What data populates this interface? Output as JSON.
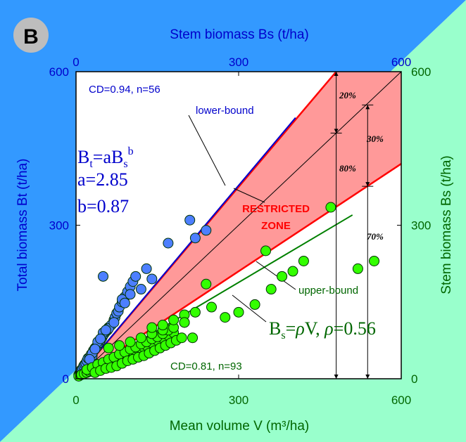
{
  "chart_data": {
    "type": "scatter",
    "panel_label": "B",
    "x_bottom": {
      "label": "Mean volume V (m³/ha)",
      "ticks": [
        0,
        300,
        600
      ],
      "range": [
        0,
        600
      ]
    },
    "x_top": {
      "label": "Stem biomass Bs (t/ha)",
      "ticks": [
        0,
        300,
        600
      ],
      "range": [
        0,
        600
      ]
    },
    "y_left": {
      "label": "Total biomass Bt (t/ha)",
      "ticks": [
        0,
        300,
        600
      ],
      "range": [
        0,
        600
      ]
    },
    "y_right": {
      "label": "Stem biomass Bs (t/ha)",
      "ticks": [
        0,
        300,
        600
      ],
      "range": [
        0,
        600
      ]
    },
    "annotations": {
      "cd_top": "CD=0.94, n=56",
      "cd_bottom": "CD=0.81, n=93",
      "lower_bound": "lower-bound",
      "upper_bound": "upper-bound",
      "restricted_1": "RESTRICTED",
      "restricted_2": "ZONE",
      "eq1": "Bt=aBs^b",
      "eq_a": "a=2.85",
      "eq_b": "b=0.87",
      "eq2": "Bs=ρV, ρ=0.56",
      "pct_20": "20%",
      "pct_30": "30%",
      "pct_80": "80%",
      "pct_70": "70%"
    },
    "colors": {
      "blue_bg": "#3399ff",
      "green_bg": "#99ffcc",
      "zone_fill": "#ff9999",
      "zone_line": "#ff0000",
      "blue_series": "#4d7fff",
      "blue_line": "#0000cc",
      "green_series": "#33ff00",
      "green_line": "#008000",
      "plot_bg": "#ffffff"
    },
    "series": [
      {
        "name": "Total biomass",
        "color": "#4d7fff",
        "points": [
          [
            5,
            8
          ],
          [
            8,
            12
          ],
          [
            10,
            18
          ],
          [
            12,
            20
          ],
          [
            14,
            25
          ],
          [
            16,
            28
          ],
          [
            18,
            30
          ],
          [
            20,
            35
          ],
          [
            22,
            40
          ],
          [
            25,
            42
          ],
          [
            28,
            48
          ],
          [
            30,
            45
          ],
          [
            32,
            55
          ],
          [
            35,
            60
          ],
          [
            38,
            62
          ],
          [
            40,
            68
          ],
          [
            42,
            70
          ],
          [
            45,
            75
          ],
          [
            48,
            80
          ],
          [
            50,
            85
          ],
          [
            52,
            88
          ],
          [
            55,
            92
          ],
          [
            58,
            95
          ],
          [
            60,
            100
          ],
          [
            65,
            105
          ],
          [
            70,
            115
          ],
          [
            72,
            120
          ],
          [
            75,
            128
          ],
          [
            78,
            132
          ],
          [
            80,
            140
          ],
          [
            85,
            150
          ],
          [
            90,
            160
          ],
          [
            95,
            170
          ],
          [
            100,
            180
          ],
          [
            105,
            190
          ],
          [
            110,
            200
          ],
          [
            30,
            50
          ],
          [
            40,
            72
          ],
          [
            50,
            90
          ],
          [
            60,
            98
          ],
          [
            70,
            110
          ],
          [
            25,
            38
          ],
          [
            35,
            58
          ],
          [
            45,
            78
          ],
          [
            55,
            95
          ],
          [
            85,
            155
          ],
          [
            90,
            148
          ],
          [
            100,
            165
          ],
          [
            50,
            200
          ],
          [
            130,
            215
          ],
          [
            140,
            195
          ],
          [
            170,
            265
          ],
          [
            210,
            310
          ],
          [
            220,
            275
          ],
          [
            240,
            290
          ],
          [
            120,
            175
          ]
        ]
      },
      {
        "name": "Stem biomass",
        "color": "#33ff00",
        "points": [
          [
            5,
            5
          ],
          [
            10,
            8
          ],
          [
            15,
            10
          ],
          [
            20,
            12
          ],
          [
            25,
            14
          ],
          [
            30,
            15
          ],
          [
            35,
            18
          ],
          [
            40,
            20
          ],
          [
            45,
            22
          ],
          [
            50,
            25
          ],
          [
            55,
            28
          ],
          [
            60,
            30
          ],
          [
            65,
            32
          ],
          [
            70,
            35
          ],
          [
            75,
            38
          ],
          [
            80,
            40
          ],
          [
            85,
            42
          ],
          [
            90,
            45
          ],
          [
            95,
            48
          ],
          [
            100,
            50
          ],
          [
            105,
            52
          ],
          [
            110,
            55
          ],
          [
            115,
            58
          ],
          [
            120,
            60
          ],
          [
            125,
            62
          ],
          [
            130,
            65
          ],
          [
            140,
            70
          ],
          [
            150,
            75
          ],
          [
            160,
            80
          ],
          [
            170,
            85
          ],
          [
            180,
            90
          ],
          [
            20,
            18
          ],
          [
            30,
            22
          ],
          [
            40,
            28
          ],
          [
            50,
            32
          ],
          [
            60,
            38
          ],
          [
            70,
            42
          ],
          [
            80,
            48
          ],
          [
            90,
            52
          ],
          [
            100,
            58
          ],
          [
            110,
            62
          ],
          [
            120,
            68
          ],
          [
            130,
            72
          ],
          [
            140,
            78
          ],
          [
            150,
            82
          ],
          [
            160,
            88
          ],
          [
            170,
            95
          ],
          [
            35,
            12
          ],
          [
            45,
            16
          ],
          [
            55,
            20
          ],
          [
            65,
            22
          ],
          [
            75,
            25
          ],
          [
            85,
            30
          ],
          [
            95,
            35
          ],
          [
            105,
            38
          ],
          [
            115,
            42
          ],
          [
            125,
            45
          ],
          [
            135,
            50
          ],
          [
            145,
            55
          ],
          [
            155,
            60
          ],
          [
            165,
            65
          ],
          [
            175,
            70
          ],
          [
            185,
            75
          ],
          [
            195,
            80
          ],
          [
            60,
            60
          ],
          [
            80,
            65
          ],
          [
            100,
            72
          ],
          [
            120,
            80
          ],
          [
            140,
            88
          ],
          [
            160,
            95
          ],
          [
            180,
            100
          ],
          [
            200,
            110
          ],
          [
            140,
            100
          ],
          [
            160,
            105
          ],
          [
            180,
            115
          ],
          [
            200,
            125
          ],
          [
            220,
            130
          ],
          [
            250,
            140
          ],
          [
            275,
            120
          ],
          [
            300,
            130
          ],
          [
            330,
            145
          ],
          [
            360,
            175
          ],
          [
            380,
            200
          ],
          [
            400,
            210
          ],
          [
            420,
            230
          ],
          [
            470,
            335
          ],
          [
            350,
            250
          ],
          [
            520,
            215
          ],
          [
            550,
            230
          ],
          [
            200,
            110
          ],
          [
            240,
            185
          ],
          [
            215,
            80
          ]
        ]
      }
    ],
    "lines": {
      "lower_bound": {
        "from": [
          0,
          0
        ],
        "to": [
          405,
          510
        ]
      },
      "upper_bound": {
        "from": [
          0,
          0
        ],
        "to": [
          600,
          420
        ]
      },
      "diagonal": {
        "from": [
          0,
          0
        ],
        "to": [
          600,
          600
        ]
      },
      "red_upper": {
        "from": [
          0,
          0
        ],
        "to": [
          480,
          600
        ]
      },
      "green_fit": {
        "from": [
          0,
          0
        ],
        "to": [
          510,
          320
        ]
      }
    }
  }
}
